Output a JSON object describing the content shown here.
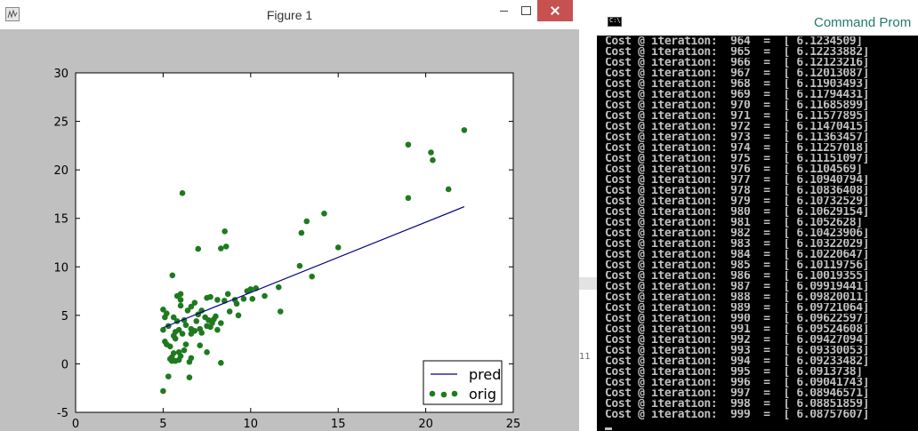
{
  "figure_window": {
    "title": "Figure 1",
    "app_icon": "matplotlib-icon",
    "controls": [
      "minimize-icon",
      "maximize-icon",
      "close-icon"
    ]
  },
  "chart_data": {
    "type": "scatter",
    "title": "",
    "xlabel": "",
    "ylabel": "",
    "xlim": [
      0,
      25
    ],
    "ylim": [
      -5,
      30
    ],
    "xticks": [
      0,
      5,
      10,
      15,
      20,
      25
    ],
    "yticks": [
      -5,
      0,
      5,
      10,
      15,
      20,
      25,
      30
    ],
    "grid": false,
    "legend_position": "bottom-right",
    "series": [
      {
        "name": "pred",
        "kind": "line",
        "color": "#00007f",
        "x": [
          5.03,
          22.2
        ],
        "y": [
          3.75,
          16.2
        ]
      },
      {
        "name": "orig",
        "kind": "scatter",
        "color": "#1f7a1f",
        "points": [
          [
            6.1,
            17.6
          ],
          [
            5.53,
            9.13
          ],
          [
            8.52,
            13.66
          ],
          [
            7.0,
            11.85
          ],
          [
            8.3,
            11.9
          ],
          [
            8.6,
            12.1
          ],
          [
            13.2,
            14.7
          ],
          [
            14.2,
            15.5
          ],
          [
            15.0,
            12.0
          ],
          [
            12.9,
            13.5
          ],
          [
            13.5,
            9.0
          ],
          [
            12.8,
            10.1
          ],
          [
            19.0,
            22.6
          ],
          [
            20.3,
            21.8
          ],
          [
            20.4,
            21.0
          ],
          [
            22.2,
            24.1
          ],
          [
            21.3,
            18.0
          ],
          [
            19.0,
            17.1
          ],
          [
            11.7,
            5.4
          ],
          [
            9.3,
            5.0
          ],
          [
            9.2,
            6.2
          ],
          [
            9.6,
            6.7
          ],
          [
            10.1,
            6.7
          ],
          [
            10.0,
            7.7
          ],
          [
            10.3,
            7.8
          ],
          [
            10.8,
            7.0
          ],
          [
            11.6,
            7.9
          ],
          [
            9.8,
            7.5
          ],
          [
            9.1,
            6.6
          ],
          [
            8.8,
            5.4
          ],
          [
            8.3,
            0.1
          ],
          [
            5.0,
            5.6
          ],
          [
            5.2,
            5.2
          ],
          [
            5.0,
            3.5
          ],
          [
            5.1,
            2.3
          ],
          [
            5.0,
            -2.8
          ],
          [
            5.3,
            -1.3
          ],
          [
            5.4,
            0.5
          ],
          [
            5.5,
            0.7
          ],
          [
            5.6,
            1.1
          ],
          [
            5.5,
            0.3
          ],
          [
            5.7,
            0.3
          ],
          [
            5.9,
            1.2
          ],
          [
            6.0,
            0.8
          ],
          [
            5.2,
            2.0
          ],
          [
            5.6,
            2.9
          ],
          [
            5.9,
            3.5
          ],
          [
            6.3,
            2.0
          ],
          [
            6.5,
            -1.4
          ],
          [
            6.4,
            5.5
          ],
          [
            6.6,
            5.9
          ],
          [
            6.8,
            6.3
          ],
          [
            6.0,
            6.6
          ],
          [
            5.8,
            7.0
          ],
          [
            6.0,
            7.2
          ],
          [
            5.8,
            4.4
          ],
          [
            6.2,
            4.5
          ],
          [
            6.3,
            4.0
          ],
          [
            6.6,
            3.6
          ],
          [
            6.1,
            3.1
          ],
          [
            5.7,
            2.6
          ],
          [
            7.1,
            3.6
          ],
          [
            7.2,
            3.2
          ],
          [
            7.5,
            3.9
          ],
          [
            7.6,
            4.5
          ],
          [
            7.8,
            4.2
          ],
          [
            7.4,
            4.8
          ],
          [
            7.7,
            3.8
          ],
          [
            7.9,
            4.6
          ],
          [
            8.1,
            3.5
          ],
          [
            8.3,
            4.2
          ],
          [
            7.5,
            6.8
          ],
          [
            7.7,
            6.9
          ],
          [
            8.1,
            6.6
          ],
          [
            8.5,
            6.5
          ],
          [
            8.7,
            7.2
          ],
          [
            7.2,
            5.5
          ],
          [
            7.0,
            5.1
          ],
          [
            6.9,
            4.4
          ],
          [
            6.8,
            3.4
          ],
          [
            6.6,
            3.1
          ],
          [
            7.1,
            1.9
          ],
          [
            7.5,
            1.2
          ],
          [
            6.5,
            0.2
          ],
          [
            6.6,
            0.6
          ],
          [
            6.2,
            1.4
          ],
          [
            5.9,
            0.4
          ],
          [
            5.3,
            3.9
          ],
          [
            6.0,
            6.0
          ],
          [
            5.1,
            4.8
          ],
          [
            5.6,
            4.8
          ],
          [
            7.8,
            4.4
          ],
          [
            8.0,
            4.9
          ],
          [
            5.4,
            1.8
          ],
          [
            5.7,
            3.3
          ]
        ]
      }
    ]
  },
  "middle_strip": {
    "text": "11"
  },
  "command_prompt": {
    "title": "Command Prom",
    "icon": "cmd-icon",
    "lines": [
      "Cost @ iteration:  964  =  [ 6.1234509]",
      "Cost @ iteration:  965  =  [ 6.12233882]",
      "Cost @ iteration:  966  =  [ 6.12123216]",
      "Cost @ iteration:  967  =  [ 6.12013087]",
      "Cost @ iteration:  968  =  [ 6.11903493]",
      "Cost @ iteration:  969  =  [ 6.11794431]",
      "Cost @ iteration:  970  =  [ 6.11685899]",
      "Cost @ iteration:  971  =  [ 6.11577895]",
      "Cost @ iteration:  972  =  [ 6.11470415]",
      "Cost @ iteration:  973  =  [ 6.11363457]",
      "Cost @ iteration:  974  =  [ 6.11257018]",
      "Cost @ iteration:  975  =  [ 6.11151097]",
      "Cost @ iteration:  976  =  [ 6.1104569]",
      "Cost @ iteration:  977  =  [ 6.10940794]",
      "Cost @ iteration:  978  =  [ 6.10836408]",
      "Cost @ iteration:  979  =  [ 6.10732529]",
      "Cost @ iteration:  980  =  [ 6.10629154]",
      "Cost @ iteration:  981  =  [ 6.1052628]",
      "Cost @ iteration:  982  =  [ 6.10423906]",
      "Cost @ iteration:  983  =  [ 6.10322029]",
      "Cost @ iteration:  984  =  [ 6.10220647]",
      "Cost @ iteration:  985  =  [ 6.10119756]",
      "Cost @ iteration:  986  =  [ 6.10019355]",
      "Cost @ iteration:  987  =  [ 6.09919441]",
      "Cost @ iteration:  988  =  [ 6.09820011]",
      "Cost @ iteration:  989  =  [ 6.09721064]",
      "Cost @ iteration:  990  =  [ 6.09622597]",
      "Cost @ iteration:  991  =  [ 6.09524608]",
      "Cost @ iteration:  992  =  [ 6.09427094]",
      "Cost @ iteration:  993  =  [ 6.09330053]",
      "Cost @ iteration:  994  =  [ 6.09233482]",
      "Cost @ iteration:  995  =  [ 6.0913738]",
      "Cost @ iteration:  996  =  [ 6.09041743]",
      "Cost @ iteration:  997  =  [ 6.08946571]",
      "Cost @ iteration:  998  =  [ 6.08851859]",
      "Cost @ iteration:  999  =  [ 6.08757607]"
    ]
  }
}
